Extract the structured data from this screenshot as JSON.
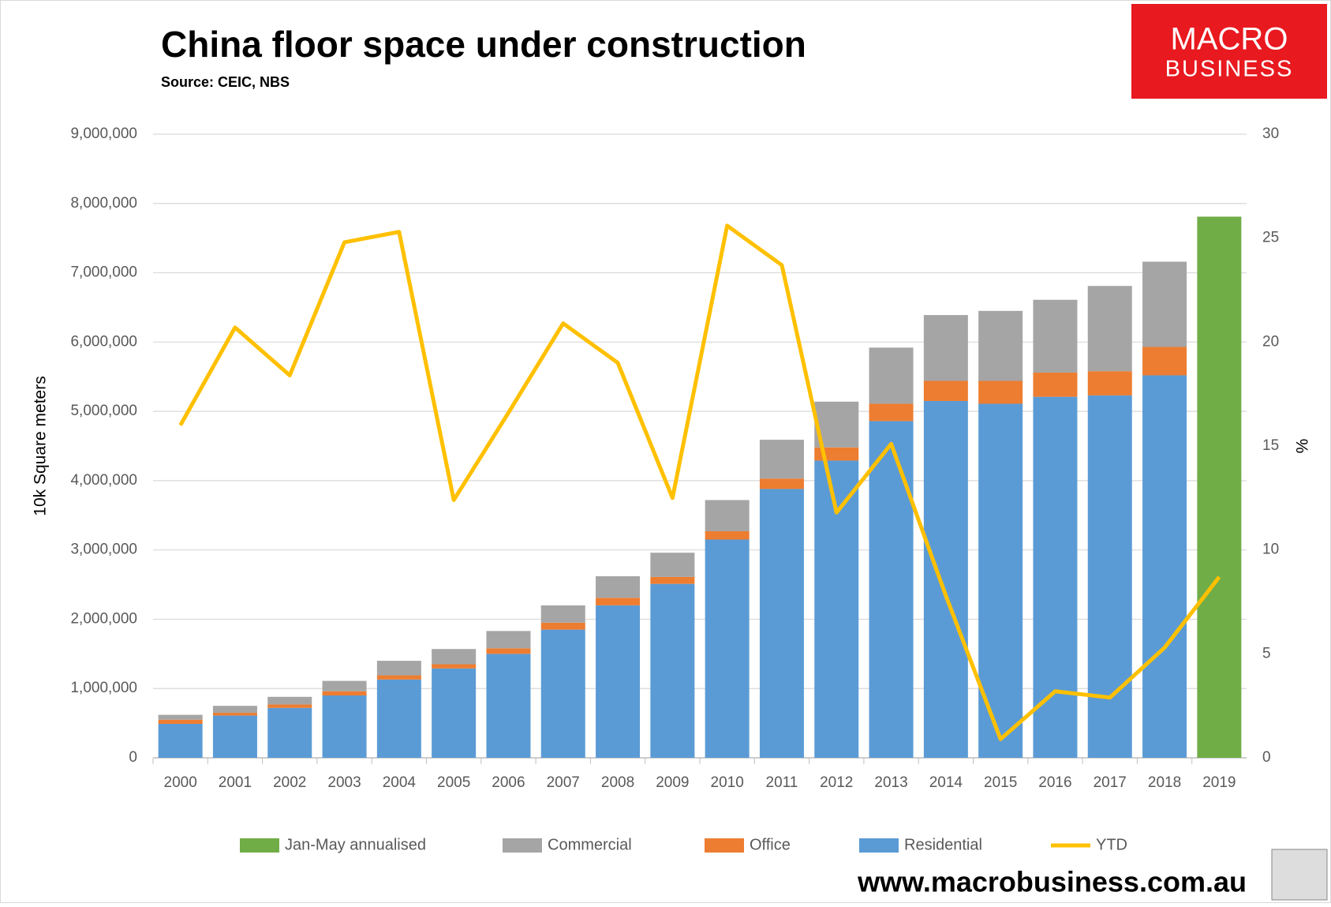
{
  "chart_data": {
    "type": "bar",
    "stacked": true,
    "title": "China floor space under construction",
    "subtitle": "Source: CEIC, NBS",
    "y_label": "10k Square meters",
    "y2_label": "%",
    "categories": [
      "2000",
      "2001",
      "2002",
      "2003",
      "2004",
      "2005",
      "2006",
      "2007",
      "2008",
      "2009",
      "2010",
      "2011",
      "2012",
      "2013",
      "2014",
      "2015",
      "2016",
      "2017",
      "2018",
      "2019"
    ],
    "series": [
      {
        "name": "Jan-May annualised",
        "color": "#70ad47",
        "type": "bar",
        "values": [
          null,
          null,
          null,
          null,
          null,
          null,
          null,
          null,
          null,
          null,
          null,
          null,
          null,
          null,
          null,
          null,
          null,
          null,
          null,
          7810000
        ]
      },
      {
        "name": "Commercial",
        "color": "#a5a5a5",
        "type": "bar",
        "values": [
          70000,
          100000,
          110000,
          150000,
          210000,
          220000,
          250000,
          250000,
          310000,
          350000,
          450000,
          560000,
          660000,
          810000,
          950000,
          1010000,
          1050000,
          1230000,
          1230000,
          null
        ]
      },
      {
        "name": "Office",
        "color": "#ed7d31",
        "type": "bar",
        "values": [
          60000,
          40000,
          50000,
          60000,
          60000,
          60000,
          80000,
          100000,
          110000,
          100000,
          120000,
          150000,
          190000,
          250000,
          290000,
          330000,
          350000,
          350000,
          410000,
          null
        ]
      },
      {
        "name": "Residential",
        "color": "#5b9bd5",
        "type": "bar",
        "values": [
          490000,
          610000,
          720000,
          900000,
          1130000,
          1290000,
          1500000,
          1850000,
          2200000,
          2510000,
          3150000,
          3880000,
          4290000,
          4860000,
          5150000,
          5110000,
          5210000,
          5230000,
          5520000,
          null
        ]
      },
      {
        "name": "YTD",
        "color": "#ffc000",
        "type": "line",
        "axis": "y2",
        "values": [
          16.0,
          20.7,
          18.4,
          24.8,
          25.3,
          12.4,
          16.6,
          20.9,
          19.0,
          12.5,
          25.6,
          23.7,
          11.8,
          15.1,
          7.8,
          0.9,
          3.2,
          2.9,
          5.3,
          8.7
        ]
      }
    ],
    "ylim": [
      0,
      9000000
    ],
    "yticks": [
      0,
      {
        "value": 1000000,
        "label": "1,000,000"
      },
      {
        "value": 2000000,
        "label": "2,000,000"
      },
      {
        "value": 3000000,
        "label": "3,000,000"
      },
      {
        "value": 4000000,
        "label": "4,000,000"
      },
      {
        "value": 5000000,
        "label": "5,000,000"
      },
      {
        "value": 6000000,
        "label": "6,000,000"
      },
      {
        "value": 7000000,
        "label": "7,000,000"
      },
      {
        "value": 8000000,
        "label": "8,000,000"
      },
      {
        "value": 9000000,
        "label": "9,000,000"
      }
    ],
    "y2lim": [
      0,
      30
    ],
    "y2ticks": [
      0,
      5,
      10,
      15,
      20,
      25,
      30
    ],
    "grid": true
  },
  "logo": {
    "line1": "MACRO",
    "line2": "BUSINESS"
  },
  "footer": "www.macrobusiness.com.au"
}
